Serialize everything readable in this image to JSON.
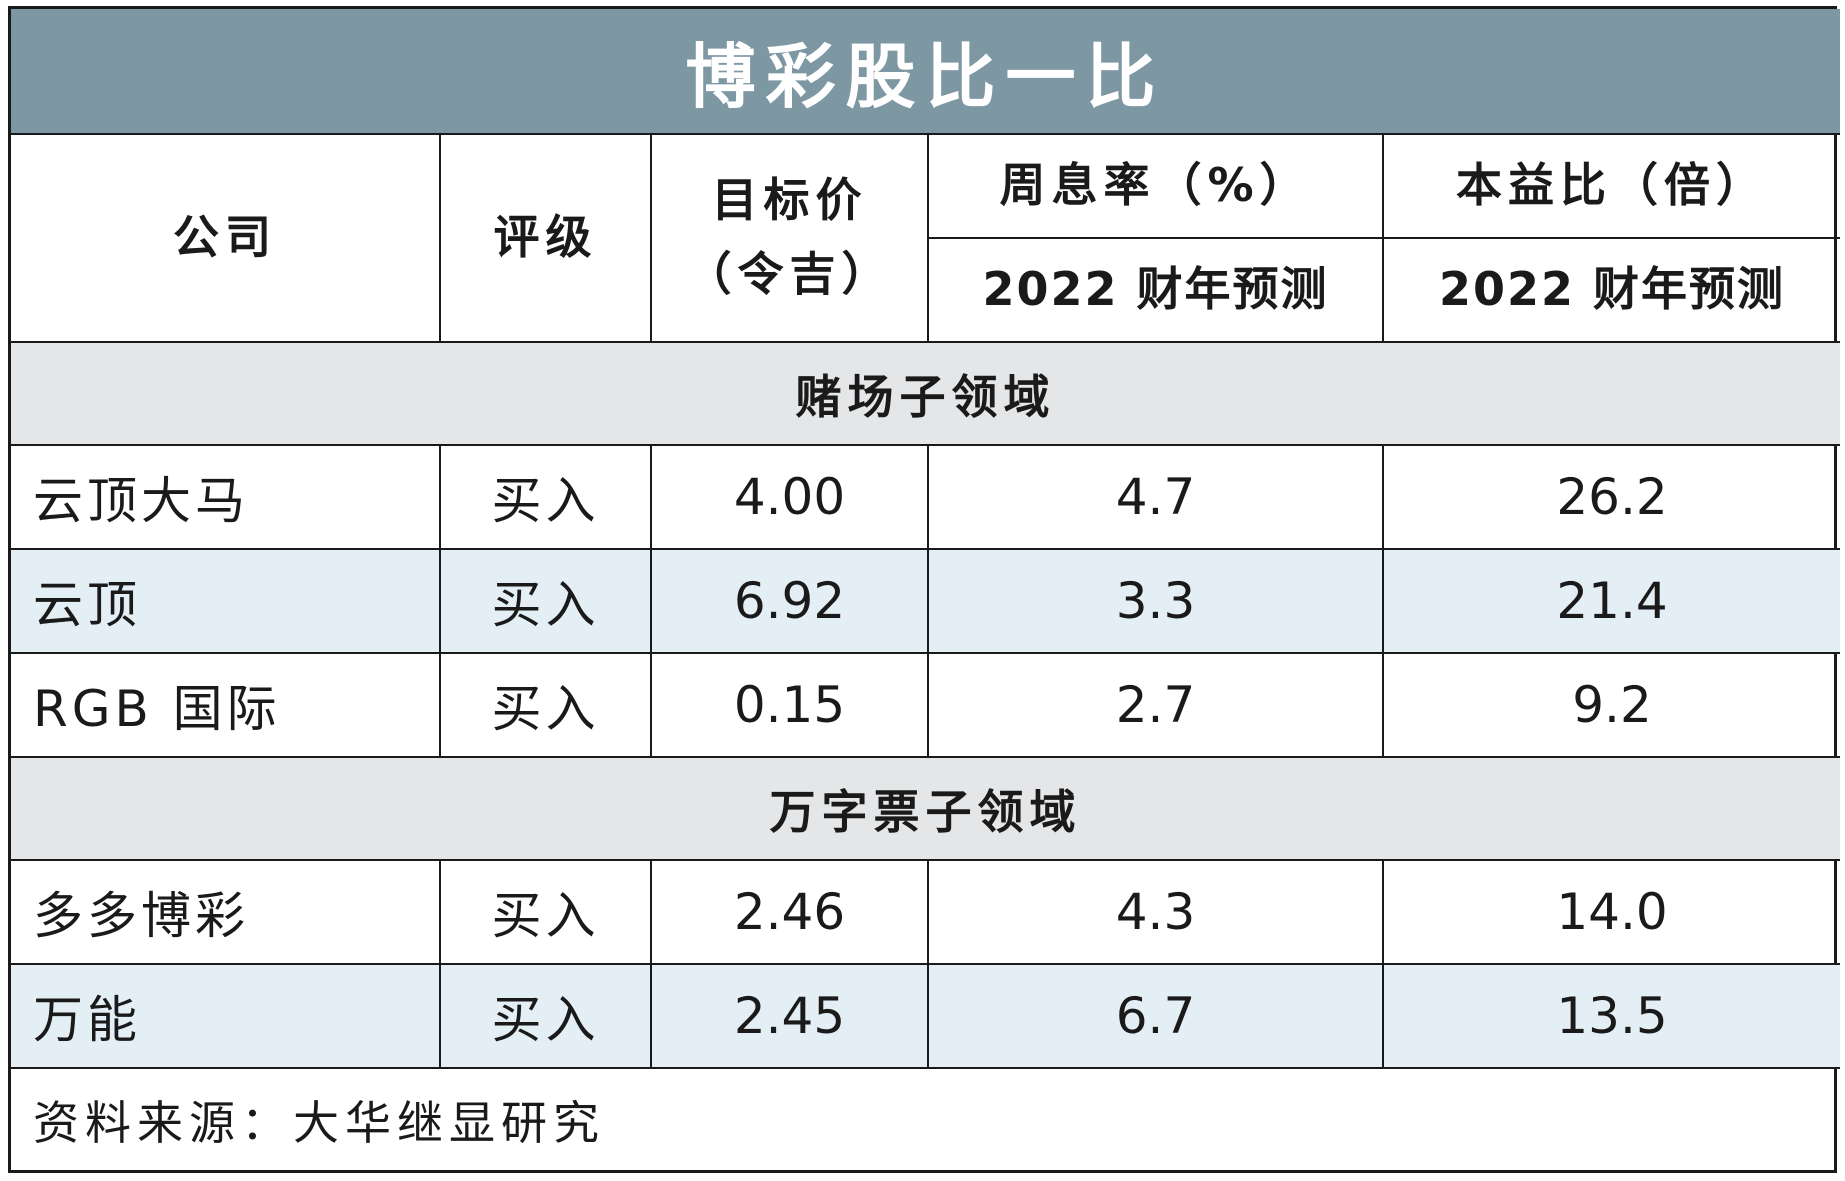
{
  "title": "博彩股比一比",
  "headers": {
    "company": "公司",
    "rating": "评级",
    "target_price_line1": "目标价",
    "target_price_line2": "（令吉）",
    "dividend_yield": "周息率（%）",
    "pe_ratio": "本益比（倍）",
    "forecast_dy": "2022 财年预测",
    "forecast_pe": "2022 财年预测"
  },
  "sections": [
    {
      "name": "赌场子领域",
      "rows": [
        {
          "company": "云顶大马",
          "rating": "买入",
          "target_price": "4.00",
          "dividend_yield": "4.7",
          "pe": "26.2"
        },
        {
          "company": "云顶",
          "rating": "买入",
          "target_price": "6.92",
          "dividend_yield": "3.3",
          "pe": "21.4"
        },
        {
          "company": "RGB 国际",
          "rating": "买入",
          "target_price": "0.15",
          "dividend_yield": "2.7",
          "pe": "9.2"
        }
      ]
    },
    {
      "name": "万字票子领域",
      "rows": [
        {
          "company": "多多博彩",
          "rating": "买入",
          "target_price": "2.46",
          "dividend_yield": "4.3",
          "pe": "14.0"
        },
        {
          "company": "万能",
          "rating": "买入",
          "target_price": "2.45",
          "dividend_yield": "6.7",
          "pe": "13.5"
        }
      ]
    }
  ],
  "source": "资料来源：大华继显研究",
  "colors": {
    "title_bg": "#7d97a3",
    "section_bg": "#e4e6e8",
    "shaded_row_bg": "#e3eef5"
  }
}
